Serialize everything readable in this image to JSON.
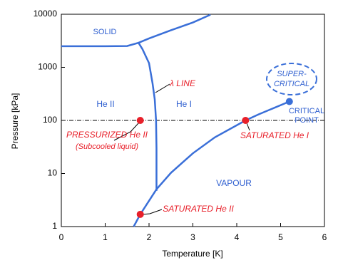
{
  "chart_data": {
    "type": "line",
    "xlabel": "Temperature [K]",
    "ylabel": "Pressure [kPa]",
    "xlim": [
      0,
      6
    ],
    "xticks": [
      0,
      1,
      2,
      3,
      4,
      5,
      6
    ],
    "ylim": [
      1,
      10000
    ],
    "yticks": [
      1,
      10,
      100,
      1000,
      10000
    ],
    "ylog": true,
    "series": [
      {
        "color": "#3a6fd8",
        "x": [
          0,
          1.0,
          1.5,
          1.76,
          2.0,
          2.5,
          3.0,
          3.4
        ],
        "values": [
          2500,
          2500,
          2520,
          2900,
          3500,
          5000,
          7000,
          9800
        ]
      },
      {
        "color": "#3a6fd8",
        "x": [
          1.76,
          1.85,
          2.0,
          2.08,
          2.13,
          2.16,
          2.17,
          2.17
        ],
        "values": [
          2900,
          2200,
          1200,
          500,
          250,
          100,
          30,
          4.7
        ]
      },
      {
        "color": "#3a6fd8",
        "x": [
          1.65,
          1.8,
          2.17,
          2.5,
          3.0,
          3.5,
          4.2,
          4.5,
          5.2
        ],
        "values": [
          1,
          1.7,
          5.04,
          10.3,
          24,
          48,
          100,
          130,
          227
        ]
      }
    ],
    "points": [
      {
        "x": 1.8,
        "y": 100,
        "color": "#e8202a"
      },
      {
        "x": 4.2,
        "y": 100,
        "color": "#e8202a"
      },
      {
        "x": 1.8,
        "y": 1.7,
        "color": "#e8202a"
      },
      {
        "x": 5.2,
        "y": 227,
        "color": "#3a6fd8"
      }
    ],
    "hline": 100,
    "annotations": [
      "SOLID",
      "He II",
      "He I",
      "λ LINE",
      "VAPOUR",
      "SUPER-",
      "CRITICAL",
      "CRITICAL",
      "POINT",
      "PRESSURIZED He II",
      "(Subcooled liquid)",
      "SATURATED He I",
      "SATURATED He II"
    ]
  }
}
